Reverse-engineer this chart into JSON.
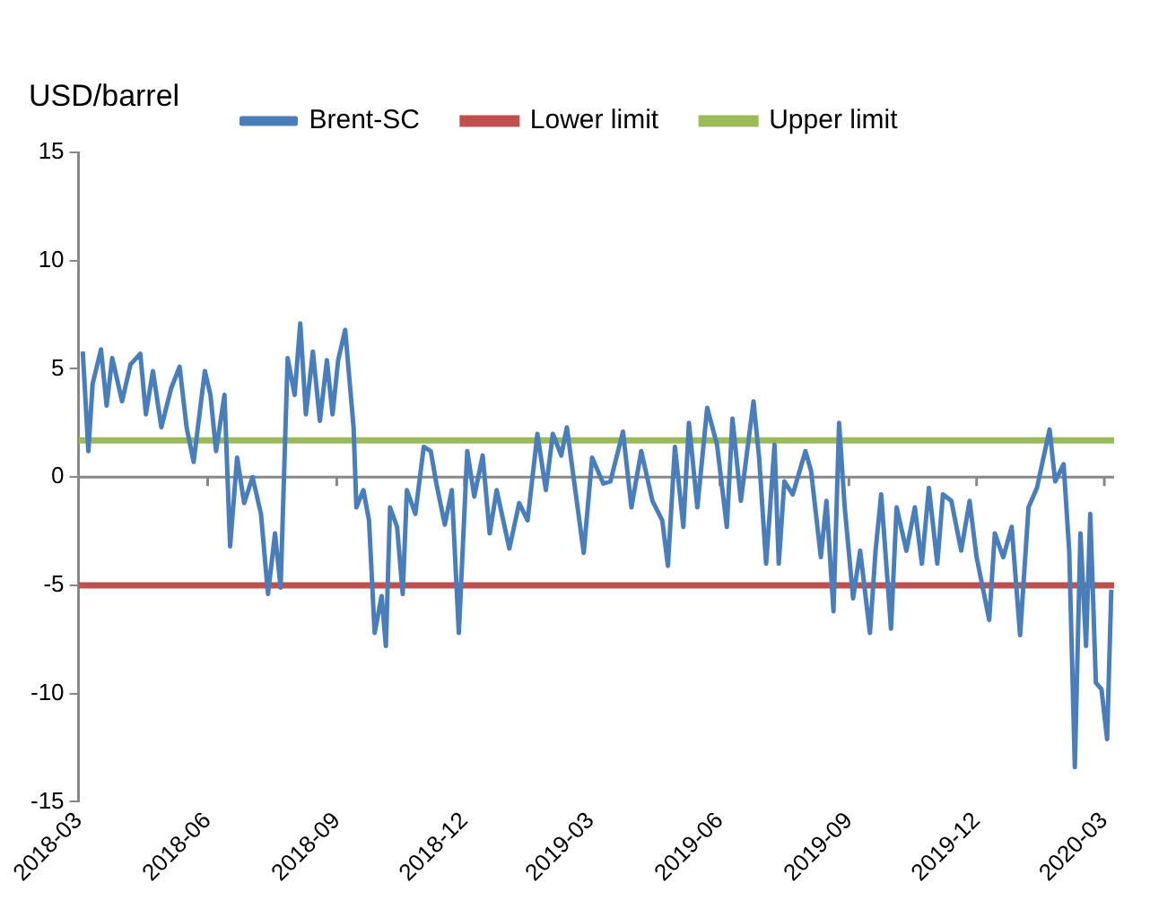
{
  "chart_data": {
    "type": "line",
    "ylabel": "USD/barrel",
    "xlim": [
      "2018-03-01",
      "2020-03-08"
    ],
    "xticks": [
      "2018-03",
      "2018-06",
      "2018-09",
      "2018-12",
      "2019-03",
      "2019-06",
      "2019-09",
      "2019-12",
      "2020-03"
    ],
    "ylim": [
      -15,
      15
    ],
    "yticks": [
      -15,
      -10,
      -5,
      0,
      5,
      10,
      15
    ],
    "grid": false,
    "legend": "top",
    "marker": "none",
    "line_style": "solid",
    "series": [
      {
        "name": "Brent-SC",
        "color": "#4a7ebb",
        "x": [
          "2018-03-04",
          "2018-03-08",
          "2018-03-11",
          "2018-03-17",
          "2018-03-21",
          "2018-03-25",
          "2018-04-01",
          "2018-04-07",
          "2018-04-14",
          "2018-04-18",
          "2018-04-23",
          "2018-04-29",
          "2018-05-06",
          "2018-05-12",
          "2018-05-17",
          "2018-05-22",
          "2018-05-30",
          "2018-06-03",
          "2018-06-07",
          "2018-06-13",
          "2018-06-17",
          "2018-06-22",
          "2018-06-27",
          "2018-07-03",
          "2018-07-09",
          "2018-07-14",
          "2018-07-19",
          "2018-07-23",
          "2018-07-28",
          "2018-08-02",
          "2018-08-06",
          "2018-08-10",
          "2018-08-15",
          "2018-08-20",
          "2018-08-25",
          "2018-08-29",
          "2018-09-02",
          "2018-09-07",
          "2018-09-13",
          "2018-09-15",
          "2018-09-20",
          "2018-09-24",
          "2018-09-28",
          "2018-10-03",
          "2018-10-06",
          "2018-10-09",
          "2018-10-14",
          "2018-10-18",
          "2018-10-21",
          "2018-10-27",
          "2018-11-02",
          "2018-11-07",
          "2018-11-11",
          "2018-11-17",
          "2018-11-22",
          "2018-11-27",
          "2018-12-03",
          "2018-12-08",
          "2018-12-14",
          "2018-12-19",
          "2018-12-24",
          "2019-01-02",
          "2019-01-09",
          "2019-01-15",
          "2019-01-22",
          "2019-01-28",
          "2019-02-02",
          "2019-02-08",
          "2019-02-12",
          "2019-02-18",
          "2019-02-24",
          "2019-03-02",
          "2019-03-10",
          "2019-03-15",
          "2019-03-24",
          "2019-03-30",
          "2019-04-06",
          "2019-04-14",
          "2019-04-21",
          "2019-04-25",
          "2019-04-30",
          "2019-05-06",
          "2019-05-10",
          "2019-05-16",
          "2019-05-23",
          "2019-05-30",
          "2019-06-06",
          "2019-06-10",
          "2019-06-16",
          "2019-06-25",
          "2019-06-29",
          "2019-07-04",
          "2019-07-10",
          "2019-07-13",
          "2019-07-17",
          "2019-07-23",
          "2019-08-01",
          "2019-08-05",
          "2019-08-12",
          "2019-08-16",
          "2019-08-21",
          "2019-08-25",
          "2019-08-29",
          "2019-09-04",
          "2019-09-09",
          "2019-09-16",
          "2019-09-20",
          "2019-09-24",
          "2019-10-01",
          "2019-10-05",
          "2019-10-12",
          "2019-10-18",
          "2019-10-23",
          "2019-10-28",
          "2019-11-03",
          "2019-11-07",
          "2019-11-13",
          "2019-11-20",
          "2019-11-26",
          "2019-12-01",
          "2019-12-10",
          "2019-12-14",
          "2019-12-20",
          "2019-12-26",
          "2020-01-01",
          "2020-01-07",
          "2020-01-13",
          "2020-01-22",
          "2020-01-26",
          "2020-02-01",
          "2020-02-05",
          "2020-02-09",
          "2020-02-13",
          "2020-02-17",
          "2020-02-20",
          "2020-02-24",
          "2020-02-28",
          "2020-03-03",
          "2020-03-06"
        ],
        "values": [
          5.8,
          1.2,
          4.3,
          5.9,
          3.3,
          5.5,
          3.5,
          5.2,
          5.7,
          2.9,
          4.9,
          2.3,
          4.1,
          5.1,
          2.3,
          0.7,
          4.9,
          3.8,
          1.2,
          3.8,
          -3.2,
          0.9,
          -1.2,
          0,
          -1.7,
          -5.4,
          -2.6,
          -5.1,
          5.5,
          3.8,
          7.1,
          2.9,
          5.8,
          2.6,
          5.4,
          2.9,
          5.4,
          6.8,
          2.3,
          -1.4,
          -0.6,
          -2,
          -7.2,
          -5.5,
          -7.8,
          -1.4,
          -2.3,
          -5.4,
          -0.6,
          -1.7,
          1.4,
          1.2,
          -0.3,
          -2.2,
          -0.6,
          -7.2,
          1.2,
          -0.9,
          1,
          -2.6,
          -0.6,
          -3.3,
          -1.2,
          -2,
          2,
          -0.6,
          2,
          1,
          2.3,
          -0.6,
          -3.5,
          0.9,
          -0.3,
          -0.2,
          2.1,
          -1.4,
          1.2,
          -1.1,
          -2,
          -4.1,
          1.4,
          -2.3,
          2.5,
          -1.4,
          3.2,
          1.5,
          -2.3,
          2.7,
          -1.1,
          3.5,
          0.9,
          -4,
          1.5,
          -4,
          -0.2,
          -0.8,
          1.2,
          0.3,
          -3.7,
          -1.1,
          -6.2,
          2.5,
          -1.4,
          -5.6,
          -3.4,
          -7.2,
          -3.4,
          -0.8,
          -7,
          -1.4,
          -3.4,
          -1.4,
          -4,
          -0.5,
          -4,
          -0.8,
          -1.1,
          -3.4,
          -1.1,
          -3.7,
          -6.6,
          -2.6,
          -3.7,
          -2.3,
          -7.3,
          -1.4,
          -0.5,
          2.2,
          -0.2,
          0.6,
          -3.4,
          -13.4,
          -2.6,
          -7.8,
          -1.7,
          -9.5,
          -9.8,
          -12.1,
          -5.2
        ]
      }
    ],
    "ref_lines": [
      {
        "axis": "y",
        "value": -5,
        "label": "Lower limit",
        "color": "#c0504d"
      },
      {
        "axis": "y",
        "value": 1.7,
        "label": "Upper limit",
        "color": "#9bbb59"
      }
    ]
  }
}
